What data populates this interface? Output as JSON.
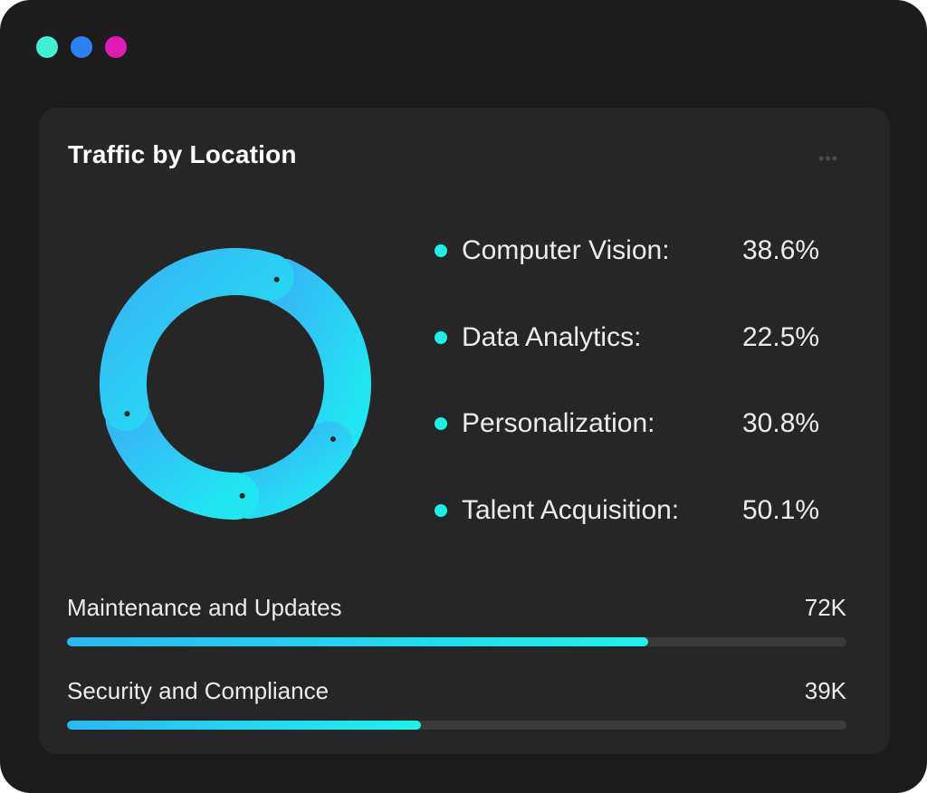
{
  "window": {
    "controls": [
      {
        "name": "dot-teal",
        "color": "#3ff0d4"
      },
      {
        "name": "dot-blue",
        "color": "#2b82f6"
      },
      {
        "name": "dot-magenta",
        "color": "#e21bb6"
      }
    ]
  },
  "card": {
    "title": "Traffic by Location",
    "more_icon": "more-horizontal-icon",
    "more_label": "•••"
  },
  "legend": {
    "items": [
      {
        "label": "Computer Vision:",
        "value": "38.6%"
      },
      {
        "label": "Data Analytics:",
        "value": "22.5%"
      },
      {
        "label": "Personalization:",
        "value": "30.8%"
      },
      {
        "label": "Talent Acquisition:",
        "value": "50.1%"
      }
    ]
  },
  "progress": [
    {
      "label": "Maintenance and Updates",
      "value": "72K",
      "fraction": 0.746
    },
    {
      "label": "Security and Compliance",
      "value": "39K",
      "fraction": 0.454
    }
  ],
  "colors": {
    "accent": "#19f0e8",
    "accent_blue": "#2ab8f5",
    "card_bg": "#262626",
    "window_bg": "#1c1c1c"
  },
  "chart_data": {
    "type": "pie",
    "categories": [
      "Computer Vision",
      "Data Analytics",
      "Personalization",
      "Talent Acquisition"
    ],
    "values": [
      38.6,
      22.5,
      30.8,
      50.1
    ]
  }
}
